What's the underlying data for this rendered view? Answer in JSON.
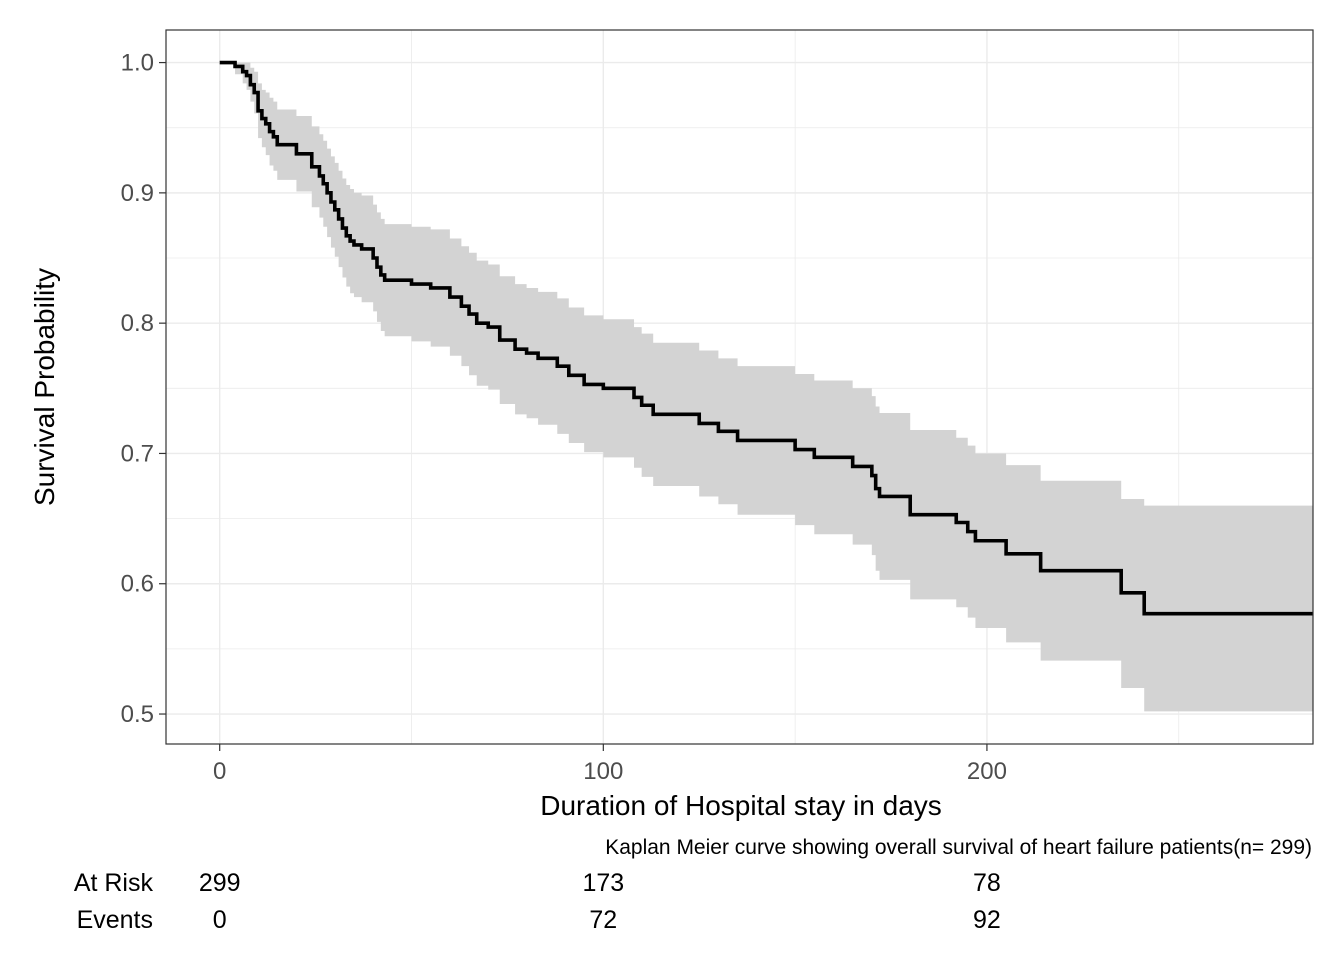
{
  "chart_data": {
    "type": "line",
    "subtype": "kaplan-meier",
    "xlabel": "Duration of Hospital stay in days",
    "ylabel": "Survival Probability",
    "caption": "Kaplan Meier curve showing overall survival of heart failure patients(n= 299)",
    "xlim": [
      -14,
      285
    ],
    "ylim": [
      0.477,
      1.025
    ],
    "x_ticks": [
      0,
      100,
      200
    ],
    "x_tick_labels": [
      "0",
      "100",
      "200"
    ],
    "y_ticks": [
      0.5,
      0.6,
      0.7,
      0.8,
      0.9,
      1.0
    ],
    "y_tick_labels": [
      "0.5",
      "0.6",
      "0.7",
      "0.8",
      "0.9",
      "1.0"
    ],
    "grid": true,
    "legend": "none",
    "colors": {
      "curve": "#000000",
      "ci_band": "#d3d3d3",
      "grid": "#ebebeb",
      "border": "#333333"
    },
    "series": [
      {
        "type": "step",
        "x": [
          0,
          4,
          6,
          7,
          8,
          9,
          10,
          11,
          12,
          13,
          14,
          15,
          20,
          24,
          26,
          27,
          28,
          29,
          30,
          31,
          32,
          33,
          34,
          35,
          37,
          40,
          41,
          42,
          43,
          44,
          45,
          50,
          55,
          60,
          63,
          65,
          67,
          70,
          73,
          77,
          80,
          83,
          85,
          88,
          91,
          95,
          100,
          108,
          110,
          113,
          125,
          130,
          135,
          150,
          155,
          165,
          170,
          171,
          172,
          180,
          192,
          195,
          197,
          205,
          214,
          235,
          241,
          285
        ],
        "y": [
          1.0,
          0.997,
          0.993,
          0.99,
          0.983,
          0.977,
          0.963,
          0.957,
          0.953,
          0.947,
          0.943,
          0.937,
          0.93,
          0.92,
          0.913,
          0.907,
          0.9,
          0.893,
          0.887,
          0.88,
          0.873,
          0.867,
          0.863,
          0.86,
          0.857,
          0.85,
          0.843,
          0.837,
          0.833,
          0.833,
          0.833,
          0.83,
          0.827,
          0.82,
          0.813,
          0.807,
          0.8,
          0.797,
          0.787,
          0.78,
          0.777,
          0.773,
          0.773,
          0.767,
          0.76,
          0.753,
          0.75,
          0.743,
          0.737,
          0.73,
          0.723,
          0.717,
          0.71,
          0.703,
          0.697,
          0.69,
          0.683,
          0.673,
          0.667,
          0.653,
          0.647,
          0.64,
          0.633,
          0.623,
          0.61,
          0.593,
          0.577,
          0.577
        ],
        "ci_lower": [
          1.0,
          0.991,
          0.984,
          0.979,
          0.97,
          0.961,
          0.942,
          0.935,
          0.929,
          0.921,
          0.917,
          0.91,
          0.901,
          0.889,
          0.881,
          0.874,
          0.866,
          0.858,
          0.851,
          0.843,
          0.835,
          0.828,
          0.823,
          0.82,
          0.816,
          0.809,
          0.801,
          0.794,
          0.79,
          0.79,
          0.79,
          0.786,
          0.782,
          0.775,
          0.767,
          0.76,
          0.752,
          0.749,
          0.738,
          0.73,
          0.727,
          0.722,
          0.722,
          0.715,
          0.708,
          0.701,
          0.697,
          0.689,
          0.682,
          0.675,
          0.667,
          0.661,
          0.653,
          0.645,
          0.638,
          0.63,
          0.622,
          0.61,
          0.603,
          0.588,
          0.582,
          0.574,
          0.566,
          0.555,
          0.541,
          0.52,
          0.502,
          0.502
        ],
        "ci_upper": [
          1.0,
          1.0,
          1.0,
          1.0,
          0.996,
          0.993,
          0.984,
          0.979,
          0.977,
          0.973,
          0.97,
          0.964,
          0.959,
          0.951,
          0.945,
          0.94,
          0.934,
          0.928,
          0.923,
          0.917,
          0.911,
          0.906,
          0.903,
          0.9,
          0.898,
          0.891,
          0.885,
          0.88,
          0.876,
          0.876,
          0.876,
          0.874,
          0.872,
          0.865,
          0.859,
          0.854,
          0.848,
          0.845,
          0.836,
          0.83,
          0.827,
          0.824,
          0.824,
          0.819,
          0.812,
          0.806,
          0.803,
          0.797,
          0.792,
          0.785,
          0.779,
          0.773,
          0.767,
          0.761,
          0.756,
          0.75,
          0.744,
          0.736,
          0.731,
          0.718,
          0.712,
          0.706,
          0.7,
          0.691,
          0.679,
          0.665,
          0.66,
          0.66
        ]
      }
    ],
    "risk_table": {
      "rows": [
        {
          "label": "At Risk",
          "values": [
            299,
            173,
            78
          ]
        },
        {
          "label": "Events",
          "values": [
            0,
            72,
            92
          ]
        }
      ],
      "times": [
        0,
        100,
        200
      ]
    }
  }
}
